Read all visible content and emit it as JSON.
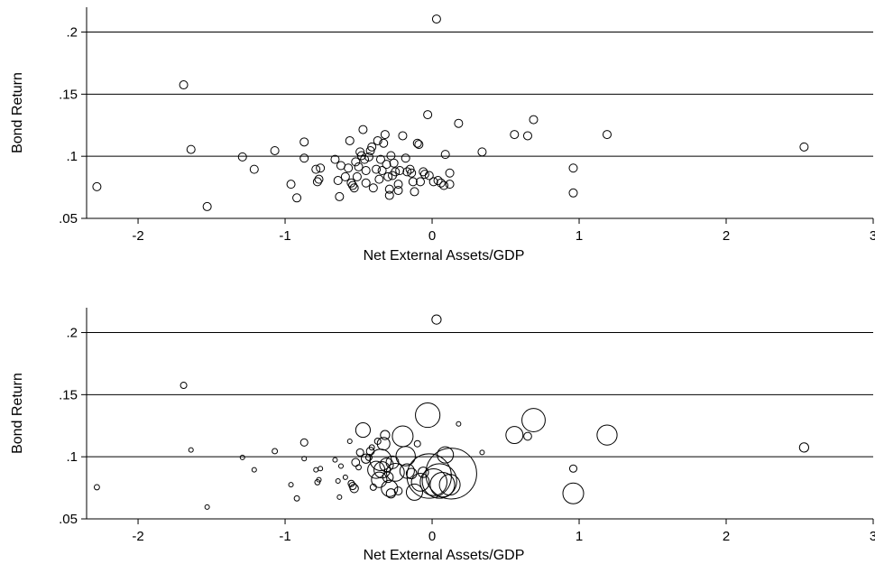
{
  "chart_data": [
    {
      "type": "scatter",
      "marker": "hollow-circle",
      "weighted": false,
      "xlabel": "Net External Assets/GDP",
      "ylabel": "Bond Return",
      "xlim": [
        -2.35,
        3.0
      ],
      "ylim": [
        0.05,
        0.22
      ],
      "xticks": [
        -2,
        -1,
        0,
        1,
        2,
        3
      ],
      "xtick_labels": [
        "-2",
        "-1",
        "0",
        "1",
        "2",
        "3"
      ],
      "yticks": [
        0.05,
        0.1,
        0.15,
        0.2
      ],
      "ytick_labels": [
        ".05",
        ".1",
        ".15",
        ".2"
      ],
      "horizontal_grid": true,
      "vertical_grid": false,
      "points": [
        {
          "x": -2.28,
          "y": 0.0755
        },
        {
          "x": -1.69,
          "y": 0.1575
        },
        {
          "x": -1.64,
          "y": 0.1055
        },
        {
          "x": -1.53,
          "y": 0.0595
        },
        {
          "x": -1.29,
          "y": 0.0995
        },
        {
          "x": -1.21,
          "y": 0.0895
        },
        {
          "x": -1.07,
          "y": 0.1045
        },
        {
          "x": -0.96,
          "y": 0.0775
        },
        {
          "x": -0.92,
          "y": 0.0665
        },
        {
          "x": -0.87,
          "y": 0.1115
        },
        {
          "x": -0.87,
          "y": 0.0985
        },
        {
          "x": -0.79,
          "y": 0.0895
        },
        {
          "x": -0.78,
          "y": 0.0795
        },
        {
          "x": -0.77,
          "y": 0.0815
        },
        {
          "x": -0.76,
          "y": 0.0905
        },
        {
          "x": -0.66,
          "y": 0.0975
        },
        {
          "x": -0.64,
          "y": 0.0805
        },
        {
          "x": -0.63,
          "y": 0.0675
        },
        {
          "x": -0.62,
          "y": 0.0925
        },
        {
          "x": -0.59,
          "y": 0.0835
        },
        {
          "x": -0.57,
          "y": 0.0905
        },
        {
          "x": -0.56,
          "y": 0.1125
        },
        {
          "x": -0.55,
          "y": 0.0785
        },
        {
          "x": -0.54,
          "y": 0.0765
        },
        {
          "x": -0.53,
          "y": 0.0745
        },
        {
          "x": -0.52,
          "y": 0.0955
        },
        {
          "x": -0.51,
          "y": 0.0835
        },
        {
          "x": -0.5,
          "y": 0.0915
        },
        {
          "x": -0.49,
          "y": 0.1035
        },
        {
          "x": -0.48,
          "y": 0.1005
        },
        {
          "x": -0.47,
          "y": 0.1215
        },
        {
          "x": -0.46,
          "y": 0.0975
        },
        {
          "x": -0.45,
          "y": 0.0885
        },
        {
          "x": -0.45,
          "y": 0.0785
        },
        {
          "x": -0.43,
          "y": 0.0995
        },
        {
          "x": -0.42,
          "y": 0.1045
        },
        {
          "x": -0.41,
          "y": 0.1075
        },
        {
          "x": -0.4,
          "y": 0.0745
        },
        {
          "x": -0.38,
          "y": 0.0895
        },
        {
          "x": -0.37,
          "y": 0.1125
        },
        {
          "x": -0.36,
          "y": 0.0815
        },
        {
          "x": -0.35,
          "y": 0.0975
        },
        {
          "x": -0.34,
          "y": 0.0885
        },
        {
          "x": -0.33,
          "y": 0.1105
        },
        {
          "x": -0.32,
          "y": 0.1175
        },
        {
          "x": -0.31,
          "y": 0.0935
        },
        {
          "x": -0.3,
          "y": 0.0835
        },
        {
          "x": -0.29,
          "y": 0.0735
        },
        {
          "x": -0.29,
          "y": 0.0685
        },
        {
          "x": -0.28,
          "y": 0.1005
        },
        {
          "x": -0.27,
          "y": 0.0845
        },
        {
          "x": -0.26,
          "y": 0.0945
        },
        {
          "x": -0.25,
          "y": 0.0875
        },
        {
          "x": -0.23,
          "y": 0.0775
        },
        {
          "x": -0.23,
          "y": 0.0725
        },
        {
          "x": -0.22,
          "y": 0.0885
        },
        {
          "x": -0.2,
          "y": 0.1165
        },
        {
          "x": -0.18,
          "y": 0.0985
        },
        {
          "x": -0.17,
          "y": 0.0875
        },
        {
          "x": -0.15,
          "y": 0.0895
        },
        {
          "x": -0.14,
          "y": 0.0865
        },
        {
          "x": -0.13,
          "y": 0.0795
        },
        {
          "x": -0.12,
          "y": 0.0715
        },
        {
          "x": -0.1,
          "y": 0.1105
        },
        {
          "x": -0.09,
          "y": 0.1095
        },
        {
          "x": -0.08,
          "y": 0.0795
        },
        {
          "x": -0.06,
          "y": 0.0875
        },
        {
          "x": -0.05,
          "y": 0.0855
        },
        {
          "x": -0.03,
          "y": 0.1335
        },
        {
          "x": -0.02,
          "y": 0.0845
        },
        {
          "x": 0.01,
          "y": 0.0795
        },
        {
          "x": 0.03,
          "y": 0.2105
        },
        {
          "x": 0.04,
          "y": 0.0805
        },
        {
          "x": 0.06,
          "y": 0.0785
        },
        {
          "x": 0.08,
          "y": 0.0765
        },
        {
          "x": 0.09,
          "y": 0.1015
        },
        {
          "x": 0.12,
          "y": 0.0775
        },
        {
          "x": 0.12,
          "y": 0.0865
        },
        {
          "x": 0.18,
          "y": 0.1265
        },
        {
          "x": 0.34,
          "y": 0.1035
        },
        {
          "x": 0.56,
          "y": 0.1175
        },
        {
          "x": 0.65,
          "y": 0.1165
        },
        {
          "x": 0.69,
          "y": 0.1295
        },
        {
          "x": 0.96,
          "y": 0.0905
        },
        {
          "x": 0.96,
          "y": 0.0705
        },
        {
          "x": 1.19,
          "y": 0.1175
        },
        {
          "x": 2.53,
          "y": 0.1075
        }
      ]
    },
    {
      "type": "scatter",
      "marker": "hollow-circle",
      "weighted": true,
      "xlabel": "Net External Assets/GDP",
      "ylabel": "Bond Return",
      "xlim": [
        -2.35,
        3.0
      ],
      "ylim": [
        0.05,
        0.22
      ],
      "xticks": [
        -2,
        -1,
        0,
        1,
        2,
        3
      ],
      "xtick_labels": [
        "-2",
        "-1",
        "0",
        "1",
        "2",
        "3"
      ],
      "yticks": [
        0.05,
        0.1,
        0.15,
        0.2
      ],
      "ytick_labels": [
        ".05",
        ".1",
        ".15",
        ".2"
      ],
      "horizontal_grid": true,
      "vertical_grid": false,
      "points": [
        {
          "x": -2.28,
          "y": 0.0755,
          "w": 1.2
        },
        {
          "x": -1.69,
          "y": 0.1575,
          "w": 1.5
        },
        {
          "x": -1.64,
          "y": 0.1055,
          "w": 1.0
        },
        {
          "x": -1.53,
          "y": 0.0595,
          "w": 1.0
        },
        {
          "x": -1.29,
          "y": 0.0995,
          "w": 1.0
        },
        {
          "x": -1.21,
          "y": 0.0895,
          "w": 1.0
        },
        {
          "x": -1.07,
          "y": 0.1045,
          "w": 1.2
        },
        {
          "x": -0.96,
          "y": 0.0775,
          "w": 1.0
        },
        {
          "x": -0.92,
          "y": 0.0665,
          "w": 1.2
        },
        {
          "x": -0.87,
          "y": 0.1115,
          "w": 1.8
        },
        {
          "x": -0.87,
          "y": 0.0985,
          "w": 1.0
        },
        {
          "x": -0.79,
          "y": 0.0895,
          "w": 1.0
        },
        {
          "x": -0.78,
          "y": 0.0795,
          "w": 1.2
        },
        {
          "x": -0.77,
          "y": 0.0815,
          "w": 1.0
        },
        {
          "x": -0.76,
          "y": 0.0905,
          "w": 1.0
        },
        {
          "x": -0.66,
          "y": 0.0975,
          "w": 1.0
        },
        {
          "x": -0.64,
          "y": 0.0805,
          "w": 1.0
        },
        {
          "x": -0.63,
          "y": 0.0675,
          "w": 1.0
        },
        {
          "x": -0.62,
          "y": 0.0925,
          "w": 1.0
        },
        {
          "x": -0.59,
          "y": 0.0835,
          "w": 1.0
        },
        {
          "x": -0.56,
          "y": 0.1125,
          "w": 1.0
        },
        {
          "x": -0.55,
          "y": 0.0785,
          "w": 1.5
        },
        {
          "x": -0.54,
          "y": 0.0765,
          "w": 1.8
        },
        {
          "x": -0.53,
          "y": 0.0745,
          "w": 2.2
        },
        {
          "x": -0.52,
          "y": 0.0955,
          "w": 2.0
        },
        {
          "x": -0.5,
          "y": 0.0915,
          "w": 1.2
        },
        {
          "x": -0.49,
          "y": 0.1035,
          "w": 1.8
        },
        {
          "x": -0.47,
          "y": 0.1215,
          "w": 5.0
        },
        {
          "x": -0.45,
          "y": 0.0985,
          "w": 2.5
        },
        {
          "x": -0.43,
          "y": 0.0995,
          "w": 1.5
        },
        {
          "x": -0.42,
          "y": 0.1045,
          "w": 2.0
        },
        {
          "x": -0.41,
          "y": 0.1075,
          "w": 1.2
        },
        {
          "x": -0.4,
          "y": 0.0755,
          "w": 1.5
        },
        {
          "x": -0.38,
          "y": 0.0895,
          "w": 6.5
        },
        {
          "x": -0.37,
          "y": 0.1125,
          "w": 1.5
        },
        {
          "x": -0.36,
          "y": 0.0815,
          "w": 5.5
        },
        {
          "x": -0.35,
          "y": 0.0975,
          "w": 9.5
        },
        {
          "x": -0.34,
          "y": 0.0895,
          "w": 6.0
        },
        {
          "x": -0.33,
          "y": 0.1105,
          "w": 4.0
        },
        {
          "x": -0.32,
          "y": 0.1175,
          "w": 2.5
        },
        {
          "x": -0.31,
          "y": 0.0935,
          "w": 4.5
        },
        {
          "x": -0.3,
          "y": 0.0835,
          "w": 3.0
        },
        {
          "x": -0.29,
          "y": 0.0745,
          "w": 6.0
        },
        {
          "x": -0.28,
          "y": 0.0705,
          "w": 2.5
        },
        {
          "x": -0.27,
          "y": 0.0955,
          "w": 4.0
        },
        {
          "x": -0.25,
          "y": 0.0875,
          "w": 7.0
        },
        {
          "x": -0.23,
          "y": 0.0725,
          "w": 2.0
        },
        {
          "x": -0.2,
          "y": 0.1165,
          "w": 9.0
        },
        {
          "x": -0.18,
          "y": 0.1005,
          "w": 8.0
        },
        {
          "x": -0.17,
          "y": 0.0885,
          "w": 5.0
        },
        {
          "x": -0.14,
          "y": 0.0865,
          "w": 3.0
        },
        {
          "x": -0.12,
          "y": 0.0715,
          "w": 6.0
        },
        {
          "x": -0.1,
          "y": 0.1105,
          "w": 1.5
        },
        {
          "x": -0.08,
          "y": 0.0795,
          "w": 7.0
        },
        {
          "x": -0.06,
          "y": 0.0875,
          "w": 3.0
        },
        {
          "x": -0.03,
          "y": 0.1335,
          "w": 12.0
        },
        {
          "x": -0.02,
          "y": 0.0845,
          "w": 35.0
        },
        {
          "x": 0.01,
          "y": 0.0795,
          "w": 14.0
        },
        {
          "x": 0.03,
          "y": 0.2105,
          "w": 2.5
        },
        {
          "x": 0.05,
          "y": 0.0805,
          "w": 22.0
        },
        {
          "x": 0.07,
          "y": 0.0775,
          "w": 12.0
        },
        {
          "x": 0.09,
          "y": 0.1015,
          "w": 6.0
        },
        {
          "x": 0.12,
          "y": 0.0775,
          "w": 9.0
        },
        {
          "x": 0.13,
          "y": 0.0865,
          "w": 45.0
        },
        {
          "x": 0.18,
          "y": 0.1265,
          "w": 1.0
        },
        {
          "x": 0.34,
          "y": 0.1035,
          "w": 1.0
        },
        {
          "x": 0.56,
          "y": 0.1175,
          "w": 6.5
        },
        {
          "x": 0.65,
          "y": 0.1165,
          "w": 2.0
        },
        {
          "x": 0.69,
          "y": 0.1295,
          "w": 11.0
        },
        {
          "x": 0.96,
          "y": 0.0905,
          "w": 1.8
        },
        {
          "x": 0.96,
          "y": 0.0705,
          "w": 9.0
        },
        {
          "x": 1.19,
          "y": 0.1175,
          "w": 8.5
        },
        {
          "x": 2.53,
          "y": 0.1075,
          "w": 2.5
        }
      ]
    }
  ]
}
